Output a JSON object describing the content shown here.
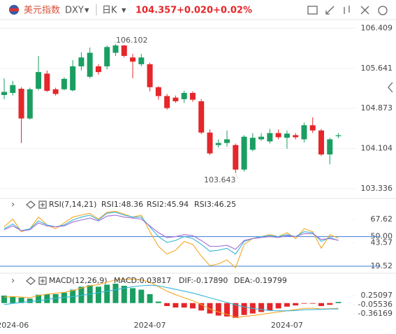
{
  "header": {
    "name": "美元指数",
    "symbol": "DXY",
    "period": "日K",
    "price": "104.357",
    "change": "+0.020",
    "change_pct": "+0.02%"
  },
  "chart_data": [
    {
      "type": "candlestick",
      "categories": [
        null,
        "2024-06",
        null,
        null,
        null,
        null,
        null,
        null,
        null,
        null,
        null,
        null,
        null,
        null,
        null,
        null,
        null,
        "2024-07",
        null,
        null,
        null,
        null,
        null,
        null,
        null,
        null,
        null,
        null,
        null,
        null,
        null,
        null,
        null,
        "2024-07",
        null,
        null,
        null,
        null,
        null,
        null
      ],
      "open": [
        105.13,
        105.17,
        105.25,
        104.68,
        105.25,
        105.54,
        105.24,
        105.24,
        105.22,
        105.68,
        105.48,
        105.68,
        105.68,
        105.94,
        106.08,
        105.85,
        105.72,
        105.72,
        105.28,
        105.11,
        105.08,
        105.05,
        105.17,
        105.01,
        104.41,
        104.17,
        104.21,
        104.17,
        103.7,
        104.08,
        104.28,
        104.24,
        104.4,
        104.31,
        104.36,
        104.28,
        104.55,
        104.45,
        103.99,
        104.34
      ],
      "high": [
        105.45,
        105.4,
        105.28,
        105.27,
        105.88,
        105.6,
        105.27,
        105.47,
        105.8,
        105.95,
        106.04,
        105.72,
        106.08,
        106.102,
        106.09,
        105.92,
        105.92,
        105.75,
        105.3,
        105.15,
        105.12,
        105.21,
        105.2,
        105.05,
        104.47,
        104.28,
        104.45,
        104.2,
        104.36,
        104.4,
        104.4,
        104.48,
        104.47,
        104.45,
        104.4,
        104.6,
        104.7,
        104.48,
        104.31,
        104.4
      ],
      "low": [
        105.05,
        105.12,
        104.21,
        104.66,
        105.22,
        105.19,
        105.12,
        105.22,
        105.2,
        105.6,
        105.45,
        105.52,
        105.62,
        105.88,
        105.85,
        105.45,
        105.68,
        105.2,
        105.04,
        104.85,
        104.98,
        104.98,
        105.0,
        104.38,
        103.98,
        104.12,
        104.14,
        103.643,
        103.66,
        104.05,
        104.25,
        104.2,
        104.28,
        104.1,
        104.28,
        104.22,
        104.4,
        103.96,
        103.8,
        104.3
      ],
      "close": [
        105.19,
        105.32,
        104.68,
        105.24,
        105.57,
        105.21,
        105.15,
        105.44,
        105.68,
        105.85,
        105.94,
        105.57,
        106.05,
        106.08,
        105.88,
        105.77,
        105.85,
        105.28,
        105.11,
        104.88,
        105.01,
        105.17,
        105.04,
        104.41,
        104.01,
        104.21,
        104.28,
        103.7,
        104.33,
        104.31,
        104.33,
        104.4,
        104.32,
        104.39,
        104.32,
        104.55,
        104.45,
        103.99,
        104.28,
        104.357
      ],
      "up_color": "#1a9e62",
      "down_color": "#e5262a",
      "ylim": [
        103.2,
        106.55
      ],
      "yticks": [
        106.409,
        105.641,
        104.873,
        104.104,
        103.336
      ],
      "grid": true,
      "annotations": [
        "106.102",
        "103.643"
      ]
    },
    {
      "type": "line",
      "title": "RSI(7,14,21)",
      "series": [
        {
          "name": "RSI1:48.36",
          "color": "#f5a623",
          "values": [
            60,
            68,
            55,
            58,
            70,
            62,
            58,
            64,
            70,
            72,
            74,
            68,
            75,
            76,
            73,
            70,
            72,
            55,
            40,
            32,
            36,
            45,
            42,
            30,
            20,
            22,
            26,
            18,
            42,
            48,
            50,
            52,
            50,
            54,
            48,
            58,
            55,
            38,
            52,
            48.36
          ]
        },
        {
          "name": "RSI2:45.94",
          "color": "#36b5d8",
          "values": [
            58,
            63,
            56,
            58,
            66,
            62,
            60,
            62,
            67,
            70,
            72,
            67,
            74,
            75,
            72,
            70,
            70,
            60,
            50,
            44,
            46,
            50,
            48,
            42,
            35,
            36,
            38,
            32,
            45,
            48,
            50,
            51,
            50,
            52,
            50,
            55,
            54,
            45,
            49,
            45.94
          ]
        },
        {
          "name": "RSI3:46.25",
          "color": "#a06cd5",
          "values": [
            57,
            61,
            56,
            57,
            64,
            61,
            60,
            61,
            65,
            67,
            69,
            66,
            71,
            72,
            70,
            69,
            68,
            61,
            54,
            49,
            50,
            52,
            51,
            46,
            40,
            40,
            41,
            37,
            46,
            48,
            49,
            50,
            49,
            51,
            50,
            53,
            53,
            47,
            48,
            46.25
          ]
        }
      ],
      "ylim": [
        14.5,
        77.7
      ],
      "yticks": [
        67.62,
        {
          "value": 50,
          "label": "50.00"
        },
        43.57,
        19.52
      ],
      "hlines": [
        50,
        19.52
      ],
      "hline_color": "#3b7dd8"
    },
    {
      "type": "macd",
      "title": "MACD(12,26,9)",
      "series": [
        {
          "name": "MACD:0.03817",
          "color": "#a06cd5",
          "up_color": "#1a9e62",
          "down_color": "#e5262a",
          "values": [
            0.25,
            0.22,
            0.18,
            0.15,
            0.28,
            0.3,
            0.3,
            0.35,
            0.45,
            0.55,
            0.6,
            0.55,
            0.62,
            0.65,
            0.58,
            0.5,
            0.45,
            0.3,
            0.05,
            -0.1,
            -0.15,
            -0.15,
            -0.18,
            -0.25,
            -0.35,
            -0.42,
            -0.45,
            -0.5,
            -0.4,
            -0.35,
            -0.3,
            -0.25,
            -0.18,
            -0.12,
            -0.08,
            -0.02,
            -0.02,
            -0.1,
            -0.06,
            0.03817
          ]
        },
        {
          "name": "DIF:-0.17890",
          "color": "#f5a623",
          "values": [
            0.2,
            0.22,
            0.2,
            0.18,
            0.25,
            0.3,
            0.33,
            0.36,
            0.42,
            0.5,
            0.58,
            0.62,
            0.7,
            0.78,
            0.8,
            0.8,
            0.78,
            0.7,
            0.55,
            0.4,
            0.28,
            0.18,
            0.08,
            -0.05,
            -0.2,
            -0.3,
            -0.38,
            -0.48,
            -0.45,
            -0.42,
            -0.38,
            -0.34,
            -0.3,
            -0.26,
            -0.22,
            -0.18,
            -0.17,
            -0.2,
            -0.19,
            -0.1789
          ]
        },
        {
          "name": "DEA:-0.19799",
          "color": "#36b5d8",
          "values": [
            -0.05,
            -0.01,
            0.02,
            0.05,
            0.08,
            0.12,
            0.16,
            0.19,
            0.22,
            0.26,
            0.3,
            0.35,
            0.4,
            0.45,
            0.5,
            0.55,
            0.58,
            0.6,
            0.58,
            0.52,
            0.46,
            0.4,
            0.34,
            0.26,
            0.18,
            0.1,
            0.02,
            -0.06,
            -0.13,
            -0.18,
            -0.22,
            -0.25,
            -0.26,
            -0.26,
            -0.25,
            -0.23,
            -0.22,
            -0.21,
            -0.2,
            -0.19799
          ]
        }
      ],
      "ylim": [
        -0.57,
        0.98
      ],
      "yticks": [
        0.25097,
        -0.05536,
        -0.36169
      ]
    }
  ]
}
